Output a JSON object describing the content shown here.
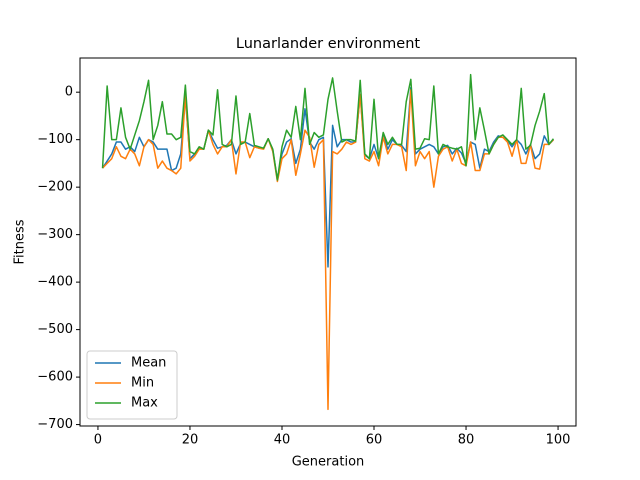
{
  "chart_data": {
    "type": "line",
    "title": "Lunarlander environment",
    "x_label": "Generation",
    "y_label": "Fitness",
    "x": [
      1,
      2,
      3,
      4,
      5,
      6,
      7,
      8,
      9,
      10,
      11,
      12,
      13,
      14,
      15,
      16,
      17,
      18,
      19,
      20,
      21,
      22,
      23,
      24,
      25,
      26,
      27,
      28,
      29,
      30,
      31,
      32,
      33,
      34,
      35,
      36,
      37,
      38,
      39,
      40,
      41,
      42,
      43,
      44,
      45,
      46,
      47,
      48,
      49,
      50,
      51,
      52,
      53,
      54,
      55,
      56,
      57,
      58,
      59,
      60,
      61,
      62,
      63,
      64,
      65,
      66,
      67,
      68,
      69,
      70,
      71,
      72,
      73,
      74,
      75,
      76,
      77,
      78,
      79,
      80,
      81,
      82,
      83,
      84,
      85,
      86,
      87,
      88,
      89,
      90,
      91,
      92,
      93,
      94,
      95,
      96,
      97,
      98,
      99
    ],
    "series": [
      {
        "name": "Mean",
        "color": "#1f77b4",
        "values": [
          -160,
          -145,
          -130,
          -105,
          -105,
          -120,
          -115,
          -125,
          -95,
          -115,
          -100,
          -105,
          -120,
          -120,
          -120,
          -165,
          -160,
          -130,
          -10,
          -140,
          -130,
          -118,
          -120,
          -80,
          -100,
          -118,
          -115,
          -112,
          -100,
          -130,
          -108,
          -105,
          -110,
          -115,
          -118,
          -118,
          -98,
          -122,
          -185,
          -130,
          -105,
          -98,
          -150,
          -120,
          -35,
          -105,
          -120,
          -100,
          -95,
          -368,
          -70,
          -115,
          -100,
          -100,
          -105,
          -105,
          -5,
          -132,
          -140,
          -110,
          -140,
          -90,
          -120,
          -100,
          -110,
          -112,
          -125,
          10,
          -130,
          -120,
          -115,
          -110,
          -115,
          -130,
          -115,
          -112,
          -130,
          -118,
          -128,
          -150,
          -105,
          -110,
          -160,
          -120,
          -125,
          -105,
          -92,
          -95,
          -102,
          -115,
          -100,
          -110,
          -130,
          -110,
          -140,
          -130,
          -92,
          -110,
          -100
        ]
      },
      {
        "name": "Min",
        "color": "#ff7f0e",
        "values": [
          -160,
          -150,
          -140,
          -115,
          -135,
          -140,
          -120,
          -130,
          -155,
          -115,
          -100,
          -110,
          -160,
          -145,
          -160,
          -165,
          -172,
          -160,
          -5,
          -145,
          -135,
          -120,
          -120,
          -80,
          -110,
          -130,
          -115,
          -115,
          -100,
          -172,
          -105,
          -105,
          -138,
          -115,
          -118,
          -120,
          -98,
          -125,
          -188,
          -140,
          -130,
          -100,
          -175,
          -130,
          -80,
          -95,
          -158,
          -110,
          -100,
          -668,
          -125,
          -130,
          -120,
          -105,
          -110,
          -105,
          -5,
          -140,
          -145,
          -125,
          -155,
          -95,
          -130,
          -110,
          -110,
          -115,
          -165,
          5,
          -155,
          -125,
          -140,
          -125,
          -200,
          -135,
          -120,
          -115,
          -145,
          -120,
          -150,
          -155,
          -105,
          -165,
          -165,
          -130,
          -130,
          -110,
          -95,
          -95,
          -105,
          -135,
          -100,
          -150,
          -150,
          -110,
          -160,
          -162,
          -110,
          -110,
          -100
        ]
      },
      {
        "name": "Max",
        "color": "#2ca02c",
        "values": [
          -160,
          13,
          -100,
          -100,
          -33,
          -95,
          -120,
          -90,
          -60,
          -20,
          25,
          -100,
          -70,
          -20,
          -88,
          -88,
          -100,
          -95,
          15,
          -125,
          -130,
          -115,
          -120,
          -80,
          -90,
          5,
          -110,
          -115,
          -110,
          -8,
          -110,
          -105,
          -45,
          -112,
          -115,
          -118,
          -98,
          -120,
          -185,
          -115,
          -80,
          -95,
          -30,
          -100,
          8,
          -110,
          -85,
          -95,
          -90,
          -15,
          30,
          -40,
          -105,
          -100,
          -100,
          -103,
          25,
          -130,
          -140,
          -15,
          -140,
          -85,
          -110,
          -95,
          -110,
          -110,
          -20,
          27,
          -120,
          -118,
          -98,
          -100,
          13,
          -130,
          -110,
          -115,
          -118,
          -120,
          -115,
          -155,
          37,
          -100,
          -33,
          -80,
          -130,
          -110,
          -95,
          -90,
          -100,
          -110,
          -100,
          8,
          -120,
          -112,
          -70,
          -40,
          -3,
          -110,
          -98
        ]
      }
    ],
    "xlim": [
      -3.9,
      103.9
    ],
    "ylim": [
      -703,
      72
    ],
    "xticks": [
      0,
      20,
      40,
      60,
      80,
      100
    ],
    "yticks": [
      {
        "value": -700,
        "label": "−700"
      },
      {
        "value": -600,
        "label": "−600"
      },
      {
        "value": -500,
        "label": "−500"
      },
      {
        "value": -400,
        "label": "−400"
      },
      {
        "value": -300,
        "label": "−300"
      },
      {
        "value": -200,
        "label": "−200"
      },
      {
        "value": -100,
        "label": "−100"
      },
      0
    ],
    "grid": false,
    "legend": "lower left"
  }
}
